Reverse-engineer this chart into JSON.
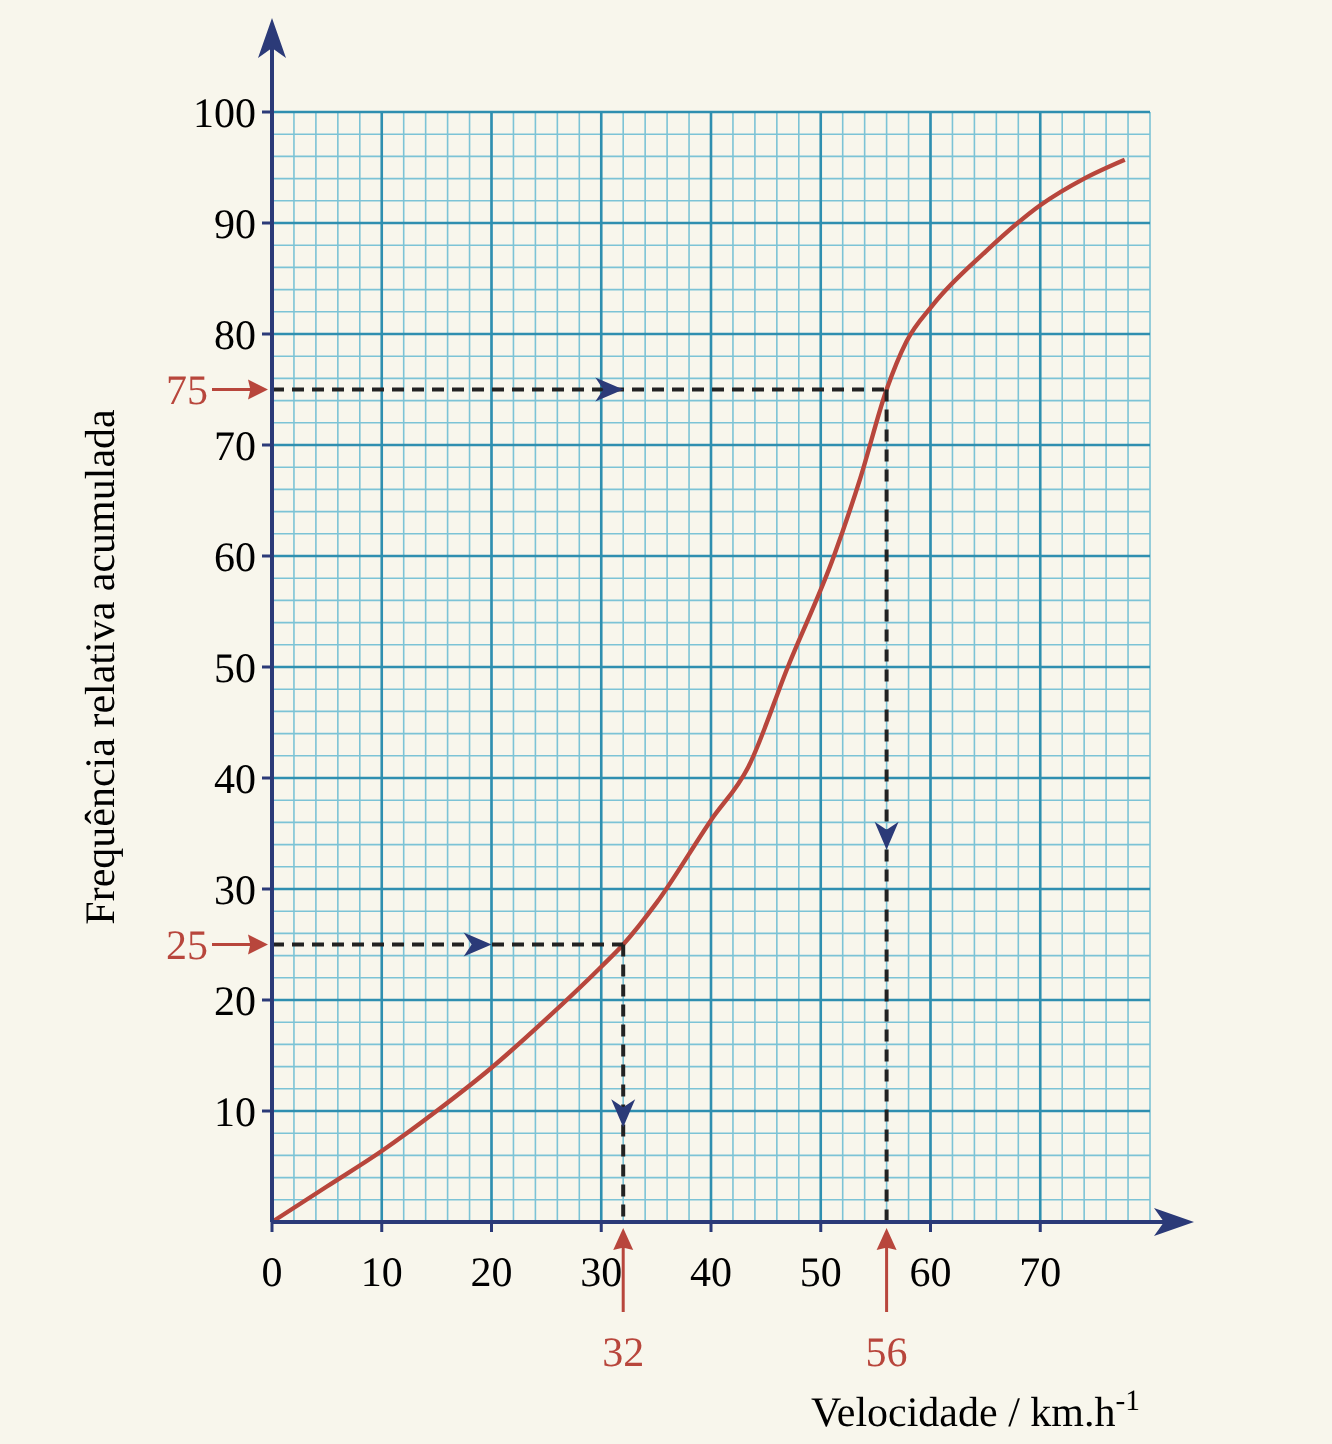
{
  "chart_data": {
    "type": "line",
    "xlabel": "Velocidade / km.h$^{-1}$",
    "ylabel": "Frequência relativa acumulada",
    "x": [
      0,
      5,
      10,
      15,
      20,
      25,
      30,
      32,
      35,
      40,
      43.4,
      47,
      51.2,
      53.6,
      56,
      57.8,
      60.2,
      65,
      70,
      74,
      77.7
    ],
    "series": [
      {
        "color": "#b8463c",
        "values": [
          0,
          3.2,
          6.4,
          10,
          13.9,
          18.3,
          23,
          25,
          28.7,
          36.2,
          41,
          50,
          60,
          67,
          75,
          79.3,
          82.6,
          87.4,
          91.6,
          94,
          95.7
        ]
      },
      {
        "color": "#222222",
        "line_style": "dashed",
        "x": [
          0,
          32
        ],
        "values": [
          25,
          25
        ]
      },
      {
        "color": "#222222",
        "line_style": "dashed",
        "x": [
          32,
          32
        ],
        "values": [
          25,
          0
        ]
      },
      {
        "color": "#222222",
        "line_style": "dashed",
        "x": [
          0,
          56
        ],
        "values": [
          75,
          75
        ]
      },
      {
        "color": "#222222",
        "line_style": "dashed",
        "x": [
          56,
          56
        ],
        "values": [
          75,
          0
        ]
      }
    ],
    "xlim": [
      0,
      80
    ],
    "ylim": [
      0,
      100
    ],
    "xticks": [
      0,
      10,
      20,
      30,
      40,
      50,
      60,
      70
    ],
    "yticks": [
      10,
      20,
      30,
      40,
      50,
      60,
      70,
      80,
      90,
      100
    ],
    "grid": true,
    "annotations": [
      {
        "text": "25",
        "x": 0,
        "y": 25
      },
      {
        "text": "75",
        "x": 0,
        "y": 75
      },
      {
        "text": "32",
        "x": 32,
        "y": 0
      },
      {
        "text": "56",
        "x": 56,
        "y": 0
      }
    ]
  }
}
